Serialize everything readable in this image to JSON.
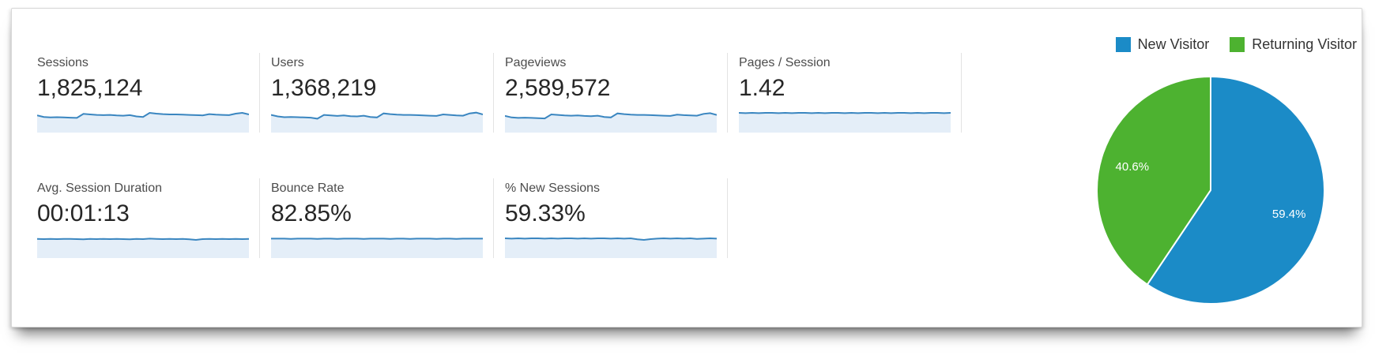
{
  "legend": {
    "items": [
      {
        "label": "New Visitor",
        "color": "#1b8bc7"
      },
      {
        "label": "Returning Visitor",
        "color": "#4db230"
      }
    ]
  },
  "metrics": {
    "row1": [
      {
        "label": "Sessions",
        "value": "1,825,124"
      },
      {
        "label": "Users",
        "value": "1,368,219"
      },
      {
        "label": "Pageviews",
        "value": "2,589,572"
      },
      {
        "label": "Pages / Session",
        "value": "1.42"
      }
    ],
    "row2": [
      {
        "label": "Avg. Session Duration",
        "value": "00:01:13"
      },
      {
        "label": "Bounce Rate",
        "value": "82.85%"
      },
      {
        "label": "% New Sessions",
        "value": "59.33%"
      }
    ]
  },
  "colors": {
    "sparkline_line": "#3a86c0",
    "sparkline_fill": "#e4eef8",
    "divider": "#e3e3e3"
  },
  "chart_data": [
    {
      "type": "pie",
      "title": "",
      "legend_position": "top-right",
      "start_angle": "top",
      "direction": "clockwise",
      "slices": [
        {
          "label": "New Visitor",
          "value": 59.4,
          "display": "59.4%",
          "color": "#1b8bc7"
        },
        {
          "label": "Returning Visitor",
          "value": 40.6,
          "display": "40.6%",
          "color": "#4db230"
        }
      ]
    },
    {
      "type": "area",
      "name": "metric-sparklines",
      "note": "unitless 30-day trend sparklines, values = % of sparkline height",
      "series": [
        {
          "name": "Sessions",
          "values": [
            68,
            62,
            60,
            61,
            60,
            59,
            58,
            74,
            72,
            70,
            69,
            70,
            68,
            67,
            69,
            64,
            62,
            78,
            75,
            73,
            72,
            72,
            71,
            70,
            69,
            68,
            73,
            71,
            70,
            69,
            75,
            78,
            72
          ]
        },
        {
          "name": "Users",
          "values": [
            70,
            64,
            61,
            62,
            61,
            60,
            59,
            55,
            70,
            68,
            66,
            68,
            65,
            64,
            67,
            62,
            60,
            76,
            73,
            71,
            70,
            70,
            69,
            68,
            67,
            66,
            72,
            70,
            68,
            67,
            76,
            79,
            72
          ]
        },
        {
          "name": "Pageviews",
          "values": [
            66,
            60,
            58,
            59,
            58,
            57,
            56,
            72,
            70,
            68,
            67,
            68,
            66,
            65,
            67,
            62,
            60,
            76,
            73,
            71,
            70,
            70,
            69,
            68,
            67,
            66,
            71,
            69,
            68,
            67,
            74,
            77,
            70
          ]
        },
        {
          "name": "Pages / Session",
          "values": [
            78,
            77,
            78,
            77,
            78,
            78,
            77,
            78,
            77,
            78,
            78,
            77,
            78,
            77,
            78,
            78,
            77,
            78,
            77,
            78,
            78,
            77,
            78,
            77,
            78,
            78,
            77,
            78,
            77,
            78,
            78,
            77,
            78
          ]
        },
        {
          "name": "Avg. Session Duration",
          "values": [
            76,
            75,
            76,
            75,
            76,
            76,
            75,
            74,
            76,
            75,
            76,
            75,
            76,
            75,
            74,
            76,
            75,
            77,
            76,
            75,
            76,
            75,
            76,
            74,
            72,
            75,
            76,
            75,
            76,
            75,
            76,
            75,
            76
          ]
        },
        {
          "name": "Bounce Rate",
          "values": [
            77,
            77,
            77,
            76,
            77,
            77,
            77,
            76,
            77,
            77,
            76,
            77,
            77,
            77,
            76,
            77,
            77,
            77,
            76,
            77,
            77,
            76,
            77,
            77,
            77,
            76,
            77,
            77,
            76,
            77,
            77,
            77,
            77
          ]
        },
        {
          "name": "% New Sessions",
          "values": [
            78,
            77,
            78,
            77,
            78,
            78,
            77,
            78,
            77,
            78,
            78,
            77,
            78,
            77,
            78,
            78,
            77,
            78,
            77,
            78,
            74,
            72,
            75,
            77,
            78,
            77,
            78,
            77,
            78,
            76,
            77,
            78,
            77
          ]
        }
      ]
    }
  ]
}
